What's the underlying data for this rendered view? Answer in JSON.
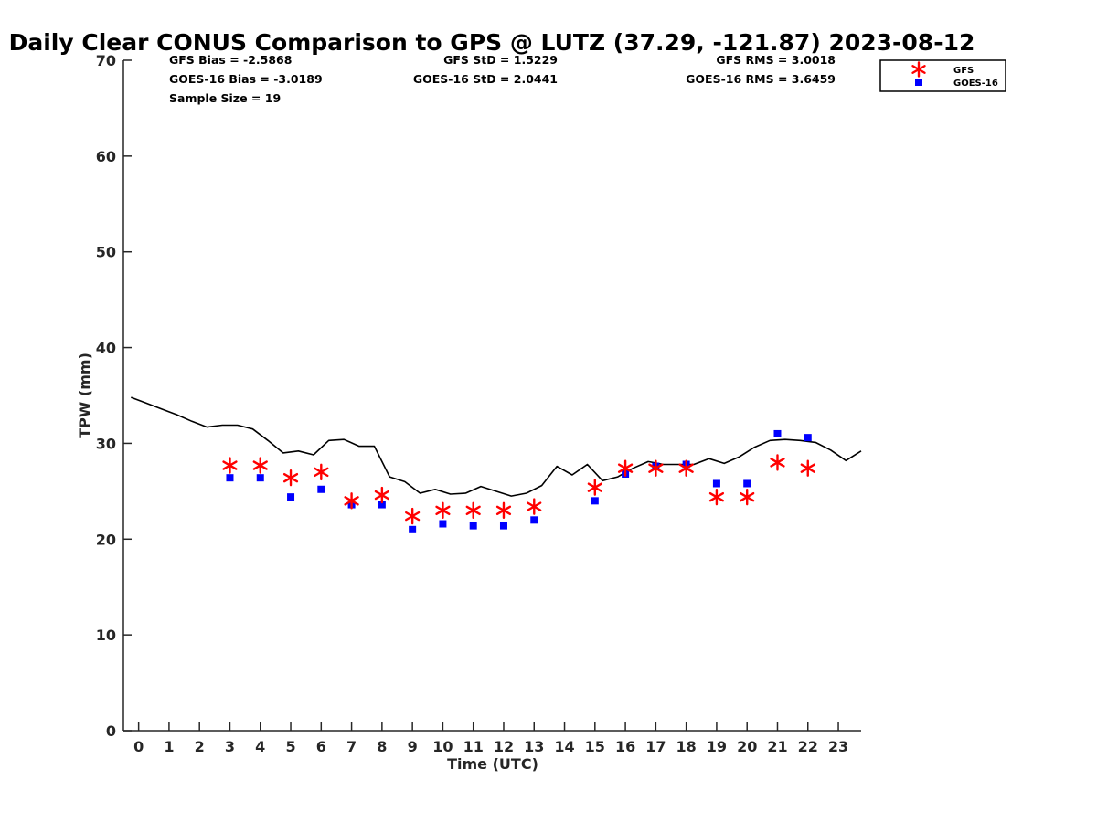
{
  "chart_data": {
    "type": "scatter",
    "title": "Daily Clear CONUS Comparison to GPS @ LUTZ (37.29, -121.87) 2023-08-12",
    "xlabel": "Time (UTC)",
    "ylabel": "TPW (mm)",
    "xlim": [
      -0.5,
      23.75
    ],
    "ylim": [
      0,
      70
    ],
    "x_ticks": [
      0,
      1,
      2,
      3,
      4,
      5,
      6,
      7,
      8,
      9,
      10,
      11,
      12,
      13,
      14,
      15,
      16,
      17,
      18,
      19,
      20,
      21,
      22,
      23
    ],
    "y_ticks": [
      0,
      10,
      20,
      30,
      40,
      50,
      60,
      70
    ],
    "grid": false,
    "legend_position": "top-right, outside plot",
    "stats": {
      "gfs_bias": "GFS Bias = -2.5868",
      "goes_bias": "GOES-16 Bias = -3.0189",
      "sample_size": "Sample Size = 19",
      "gfs_std": "GFS StD = 1.5229",
      "goes_std": "GOES-16 StD = 2.0441",
      "gfs_rms": "GFS RMS = 3.0018",
      "goes_rms": "GOES-16 RMS = 3.6459"
    },
    "series": [
      {
        "name": "GPS",
        "style": "line",
        "color": "#000000",
        "x": [
          -0.25,
          0.25,
          0.75,
          1.25,
          1.75,
          2.25,
          2.75,
          3.25,
          3.75,
          4.25,
          4.75,
          5.25,
          5.75,
          6.25,
          6.75,
          7.25,
          7.75,
          8.25,
          8.75,
          9.25,
          9.75,
          10.25,
          10.75,
          11.25,
          11.75,
          12.25,
          12.75,
          13.25,
          13.75,
          14.25,
          14.75,
          15.25,
          15.75,
          16.25,
          16.75,
          17.25,
          17.75,
          18.25,
          18.75,
          19.25,
          19.75,
          20.25,
          20.75,
          21.25,
          21.75,
          22.25,
          22.75,
          23.25,
          23.75
        ],
        "values": [
          34.8,
          34.2,
          33.6,
          33.0,
          32.3,
          31.7,
          31.9,
          31.9,
          31.5,
          30.3,
          29.0,
          29.2,
          28.8,
          30.3,
          30.4,
          29.7,
          29.7,
          26.5,
          26.0,
          24.8,
          25.2,
          24.7,
          24.8,
          25.5,
          25.0,
          24.5,
          24.8,
          25.6,
          27.6,
          26.7,
          27.8,
          26.1,
          26.5,
          27.4,
          28.1,
          27.8,
          27.8,
          27.8,
          28.4,
          27.9,
          28.6,
          29.6,
          30.3,
          30.4,
          30.3,
          30.1,
          29.3,
          28.2,
          29.2
        ]
      },
      {
        "name": "GFS",
        "style": "star",
        "color": "#ff0000",
        "x": [
          3,
          4,
          5,
          6,
          7,
          8,
          9,
          10,
          11,
          12,
          13,
          15,
          16,
          17,
          18,
          19,
          20,
          21,
          22
        ],
        "values": [
          27.7,
          27.7,
          26.4,
          27.0,
          24.0,
          24.6,
          22.4,
          23.0,
          23.0,
          23.0,
          23.4,
          25.4,
          27.4,
          27.4,
          27.4,
          24.4,
          24.4,
          28.0,
          27.4
        ]
      },
      {
        "name": "GOES-16",
        "style": "square",
        "color": "#0000ff",
        "x": [
          3,
          4,
          5,
          6,
          7,
          8,
          9,
          10,
          11,
          12,
          13,
          15,
          16,
          17,
          18,
          19,
          20,
          21,
          22
        ],
        "values": [
          26.4,
          26.4,
          24.4,
          25.2,
          23.6,
          23.6,
          21.0,
          21.6,
          21.4,
          21.4,
          22.0,
          24.0,
          26.8,
          27.6,
          27.8,
          25.8,
          25.8,
          31.0,
          30.6
        ]
      }
    ],
    "legend": {
      "entries": [
        {
          "label": "GFS",
          "marker": "star",
          "color": "#ff0000"
        },
        {
          "label": "GOES-16",
          "marker": "square",
          "color": "#0000ff"
        }
      ]
    }
  }
}
